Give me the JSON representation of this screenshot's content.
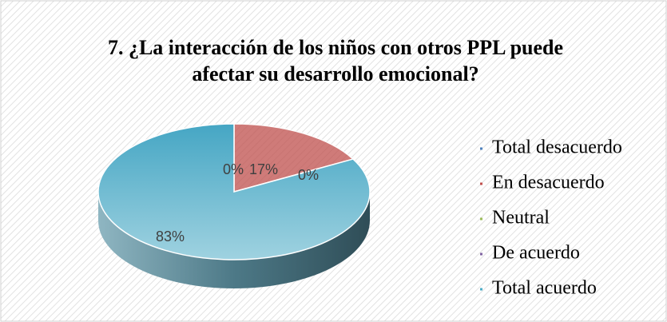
{
  "chart_data": {
    "type": "pie",
    "title": [
      "7. ¿La interacción de los niños con otros PPL puede",
      "afectar su desarrollo emocional?"
    ],
    "categories": [
      "Total desacuerdo",
      "En desacuerdo",
      "Neutral",
      "De acuerdo",
      "Total acuerdo"
    ],
    "values": [
      0,
      17,
      0,
      0,
      83
    ],
    "value_labels": [
      "0%",
      "17%",
      "0%",
      null,
      "83%"
    ],
    "colors": [
      "#4f81bd",
      "#c0504d",
      "#9bbb59",
      "#8064a2",
      "#4bacc6"
    ],
    "legend": "right"
  }
}
